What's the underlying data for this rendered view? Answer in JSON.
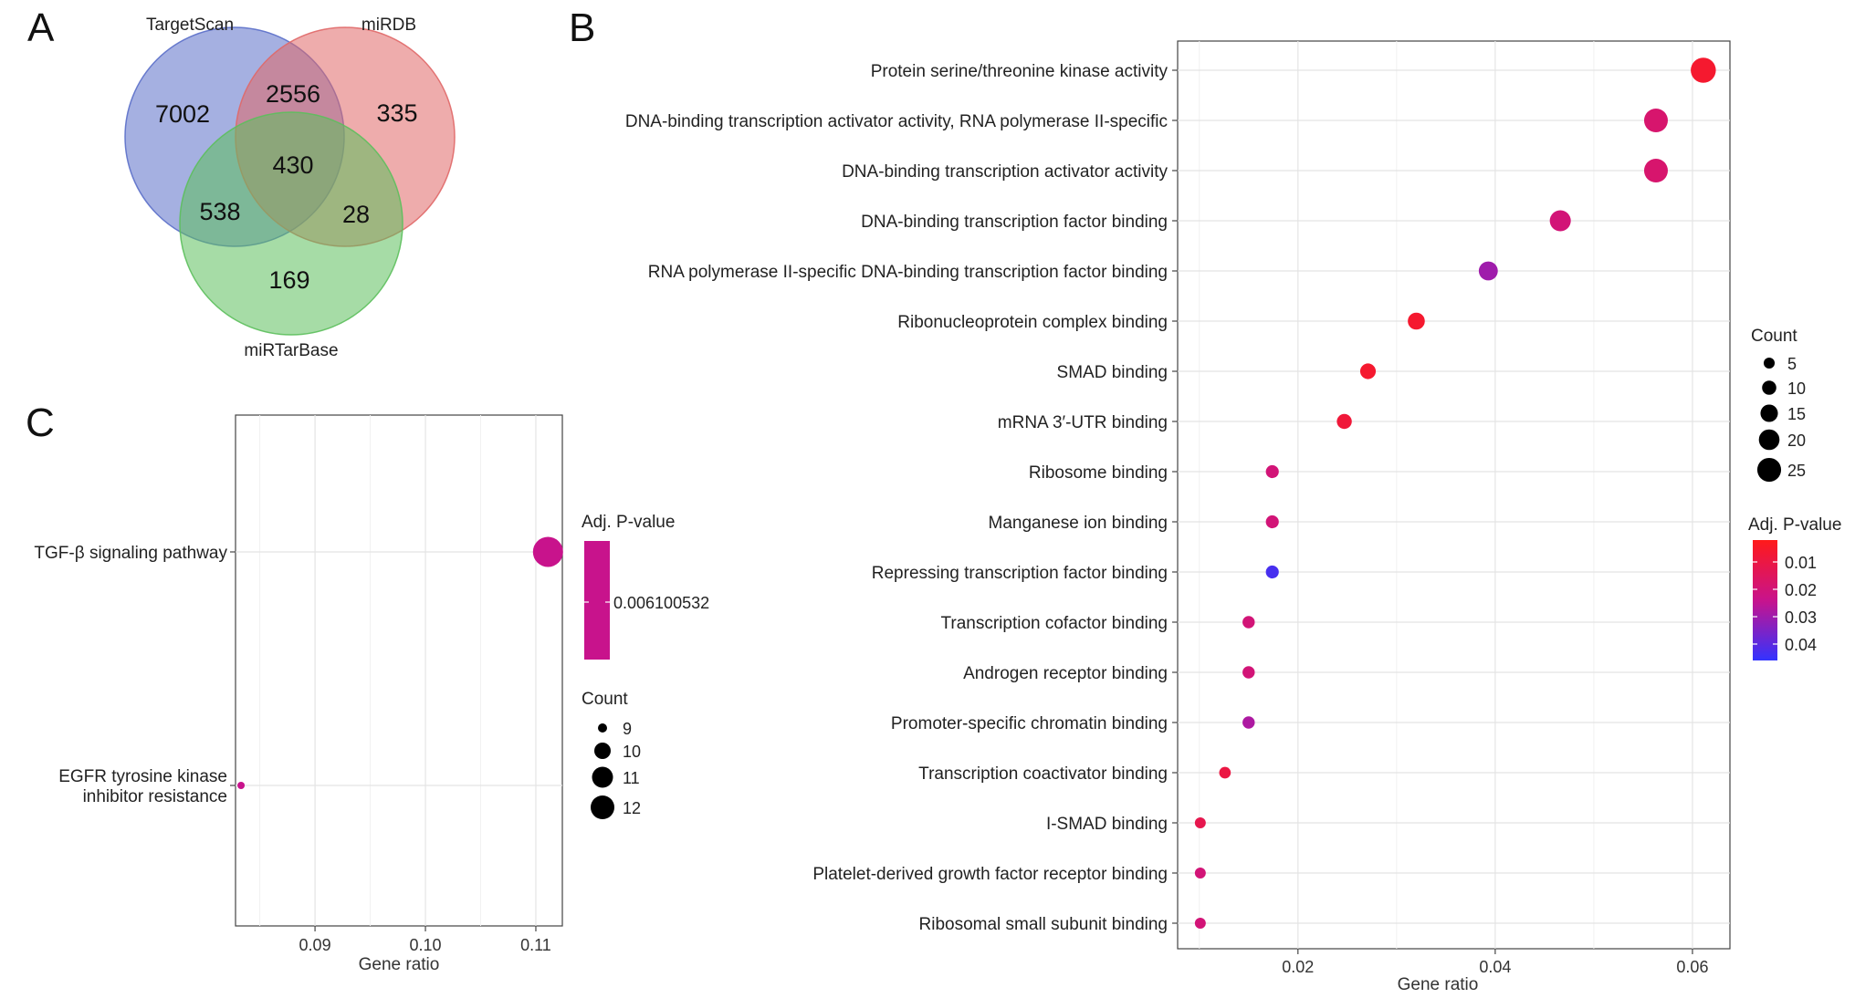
{
  "panels": {
    "a": {
      "letter": "A",
      "sets": [
        {
          "name": "TargetScan",
          "color": "#5b6fc9"
        },
        {
          "name": "miRDB",
          "color": "#e06868"
        },
        {
          "name": "miRTarBase",
          "color": "#5cbf5c"
        }
      ],
      "regions": [
        {
          "sets": [
            "TargetScan"
          ],
          "value": "7002"
        },
        {
          "sets": [
            "TargetScan",
            "miRDB"
          ],
          "value": "2556"
        },
        {
          "sets": [
            "miRDB"
          ],
          "value": "335"
        },
        {
          "sets": [
            "TargetScan",
            "miRDB",
            "miRTarBase"
          ],
          "value": "430"
        },
        {
          "sets": [
            "TargetScan",
            "miRTarBase"
          ],
          "value": "538"
        },
        {
          "sets": [
            "miRDB",
            "miRTarBase"
          ],
          "value": "28"
        },
        {
          "sets": [
            "miRTarBase"
          ],
          "value": "169"
        }
      ]
    },
    "b": {
      "letter": "B"
    },
    "c": {
      "letter": "C"
    }
  },
  "chart_data": [
    {
      "panel": "B",
      "type": "scatter",
      "xlabel": "Gene ratio",
      "xticks": [
        "0.02",
        "0.04",
        "0.06"
      ],
      "xlim": [
        0.0078,
        0.0638
      ],
      "categories": [
        "Protein serine/threonine kinase activity",
        "DNA-binding transcription activator activity, RNA polymerase II-specific",
        "DNA-binding transcription activator activity",
        "DNA-binding transcription factor binding",
        "RNA polymerase II-specific DNA-binding transcription factor binding",
        "Ribonucleoprotein complex binding",
        "SMAD binding",
        "mRNA 3′-UTR binding",
        "Ribosome binding",
        "Manganese ion binding",
        "Repressing transcription factor binding",
        "Transcription cofactor binding",
        "Androgen receptor binding",
        "Promoter-specific chromatin binding",
        "Transcription coactivator binding",
        "I-SMAD binding",
        "Platelet-derived growth factor receptor binding",
        "Ribosomal small subunit binding"
      ],
      "x": [
        0.0611,
        0.0563,
        0.0563,
        0.0466,
        0.0393,
        0.032,
        0.0271,
        0.0247,
        0.0174,
        0.0174,
        0.0174,
        0.015,
        0.015,
        0.015,
        0.0126,
        0.0101,
        0.0101,
        0.0101
      ],
      "count": [
        25,
        23,
        23,
        19,
        16,
        13,
        11,
        10,
        7,
        7,
        7,
        6,
        6,
        6,
        5,
        4,
        4,
        4
      ],
      "padj": [
        0.006,
        0.018,
        0.018,
        0.02,
        0.03,
        0.006,
        0.006,
        0.008,
        0.02,
        0.02,
        0.043,
        0.02,
        0.02,
        0.028,
        0.01,
        0.012,
        0.02,
        0.02
      ],
      "size_legend": {
        "title": "Count",
        "values": [
          5,
          10,
          15,
          20,
          25
        ]
      },
      "color_legend": {
        "title": "Adj. P-value",
        "ticks": [
          "0.01",
          "0.02",
          "0.03",
          "0.04"
        ],
        "range": [
          0.002,
          0.046
        ],
        "low_color": "#ff1a1a",
        "high_color": "#3333ff"
      }
    },
    {
      "panel": "C",
      "type": "scatter",
      "xlabel": "Gene ratio",
      "xticks": [
        "0.09",
        "0.10",
        "0.11"
      ],
      "xlim": [
        0.0828,
        0.1124
      ],
      "categories": [
        "TGF-β signaling pathway",
        "EGFR tyrosine kinase\ninhibitor resistance"
      ],
      "x": [
        0.1111,
        0.0833
      ],
      "count": [
        12,
        9
      ],
      "padj": [
        0.006100532,
        0.006100532
      ],
      "size_legend": {
        "title": "Count",
        "values": [
          9,
          10,
          11,
          12
        ]
      },
      "color_legend": {
        "title": "Adj. P-value",
        "ticks": [
          "0.006100532"
        ],
        "color": "#c8138c"
      }
    }
  ]
}
